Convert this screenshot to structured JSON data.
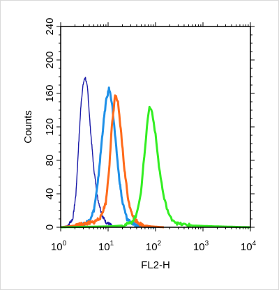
{
  "chart_data": {
    "type": "line",
    "title": "",
    "xlabel": "FL2-H",
    "ylabel": "Counts",
    "xscale": "log",
    "xlim": [
      1,
      10000
    ],
    "ylim": [
      0,
      240
    ],
    "grid": false,
    "x_ticks": [
      {
        "base": "10",
        "exp": "0"
      },
      {
        "base": "10",
        "exp": "1"
      },
      {
        "base": "10",
        "exp": "2"
      },
      {
        "base": "10",
        "exp": "3"
      },
      {
        "base": "10",
        "exp": "4"
      }
    ],
    "y_ticks": [
      "0",
      "40",
      "80",
      "120",
      "160",
      "200",
      "240"
    ],
    "series": [
      {
        "color": "#1a1aa8",
        "peak_x": 3.3,
        "peak_y": 180,
        "points": [
          [
            1,
            0
          ],
          [
            1.4,
            2
          ],
          [
            1.8,
            10
          ],
          [
            2.1,
            40
          ],
          [
            2.4,
            100
          ],
          [
            2.7,
            150
          ],
          [
            3.0,
            172
          ],
          [
            3.3,
            180
          ],
          [
            3.7,
            165
          ],
          [
            4.2,
            120
          ],
          [
            5,
            70
          ],
          [
            6,
            35
          ],
          [
            7.5,
            14
          ],
          [
            9,
            6
          ],
          [
            12,
            2
          ],
          [
            15,
            0
          ]
        ]
      },
      {
        "color": "#1e90e8",
        "peak_x": 10.5,
        "peak_y": 166,
        "points": [
          [
            1,
            0
          ],
          [
            2,
            1
          ],
          [
            3,
            3
          ],
          [
            4,
            8
          ],
          [
            5,
            20
          ],
          [
            6,
            50
          ],
          [
            7,
            90
          ],
          [
            8,
            125
          ],
          [
            9,
            150
          ],
          [
            10.5,
            166
          ],
          [
            12,
            150
          ],
          [
            14,
            110
          ],
          [
            17,
            60
          ],
          [
            20,
            30
          ],
          [
            25,
            10
          ],
          [
            35,
            3
          ],
          [
            50,
            1
          ],
          [
            100,
            0
          ]
        ]
      },
      {
        "color": "#ff6a1a",
        "peak_x": 14,
        "peak_y": 158,
        "points": [
          [
            1,
            0
          ],
          [
            2,
            2
          ],
          [
            3,
            4
          ],
          [
            5,
            6
          ],
          [
            7,
            12
          ],
          [
            9,
            30
          ],
          [
            10.5,
            70
          ],
          [
            12,
            120
          ],
          [
            14,
            158
          ],
          [
            16,
            150
          ],
          [
            19,
            110
          ],
          [
            22,
            70
          ],
          [
            27,
            30
          ],
          [
            35,
            10
          ],
          [
            50,
            3
          ],
          [
            80,
            1
          ],
          [
            150,
            0
          ]
        ]
      },
      {
        "color": "#33ee22",
        "peak_x": 75,
        "peak_y": 144,
        "points": [
          [
            1,
            0
          ],
          [
            10,
            1
          ],
          [
            20,
            2
          ],
          [
            30,
            5
          ],
          [
            40,
            15
          ],
          [
            50,
            45
          ],
          [
            60,
            95
          ],
          [
            70,
            135
          ],
          [
            75,
            144
          ],
          [
            85,
            138
          ],
          [
            100,
            110
          ],
          [
            120,
            70
          ],
          [
            150,
            35
          ],
          [
            200,
            12
          ],
          [
            300,
            4
          ],
          [
            600,
            2
          ],
          [
            2000,
            1
          ],
          [
            10000,
            0
          ]
        ]
      }
    ]
  }
}
